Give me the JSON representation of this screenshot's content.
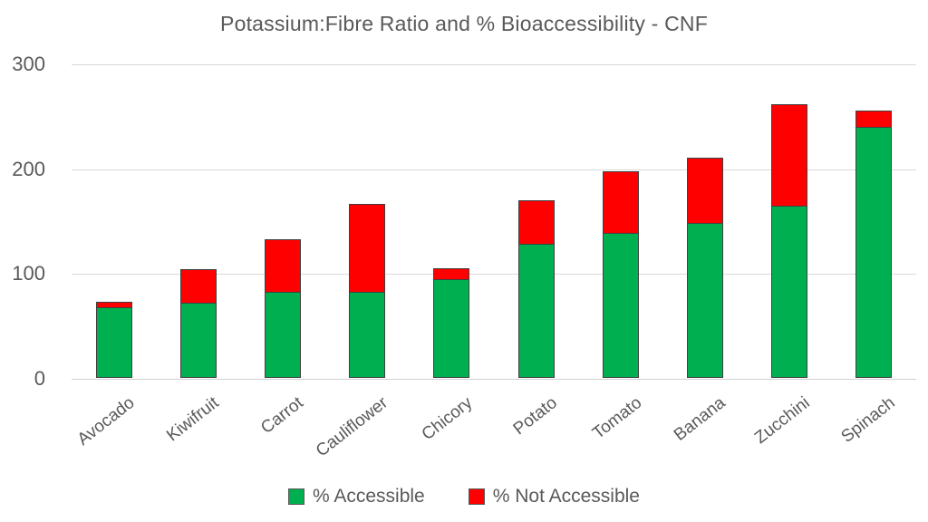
{
  "chart_data": {
    "type": "bar",
    "stacked": true,
    "title": "Potassium:Fibre Ratio and % Bioaccessibility - CNF",
    "categories": [
      "Avocado",
      "Kiwifruit",
      "Carrot",
      "Cauliflower",
      "Chicory",
      "Potato",
      "Tomato",
      "Banana",
      "Zucchini",
      "Spinach"
    ],
    "series": [
      {
        "name": "% Accessible",
        "color": "#00B050",
        "values": [
          67,
          72,
          82,
          82,
          94,
          128,
          138,
          148,
          164,
          239
        ]
      },
      {
        "name": "% Not Accessible",
        "color": "#FF0000",
        "values": [
          6,
          33,
          51,
          85,
          11,
          42,
          60,
          63,
          98,
          16
        ]
      }
    ],
    "xlabel": "",
    "ylabel": "",
    "ylim": [
      0,
      300
    ],
    "yticks": [
      0,
      100,
      200,
      300
    ],
    "grid": true,
    "legend_position": "bottom",
    "colors": {
      "text": "#595959",
      "gridline": "#d9d9d9",
      "bar_border": "#404040",
      "background": "#ffffff"
    }
  }
}
